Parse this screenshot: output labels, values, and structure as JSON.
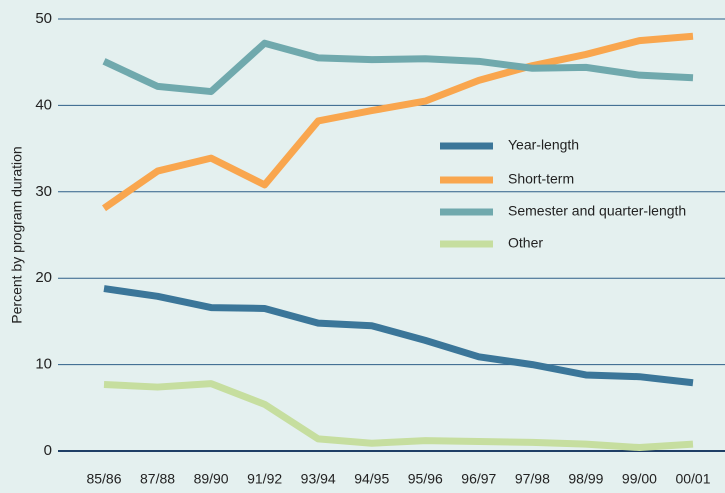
{
  "chart_data": {
    "type": "line",
    "ylabel": "Percent by program duration",
    "categories": [
      "85/86",
      "87/88",
      "89/90",
      "91/92",
      "93/94",
      "94/95",
      "95/96",
      "96/97",
      "97/98",
      "98/99",
      "99/00",
      "00/01"
    ],
    "series": [
      {
        "name": "Year-length",
        "color": "#3b7699",
        "values": [
          18.8,
          17.9,
          16.6,
          16.5,
          14.8,
          14.5,
          12.8,
          10.9,
          10.0,
          8.8,
          8.6,
          7.9
        ]
      },
      {
        "name": "Short-term",
        "color": "#f9a64e",
        "values": [
          28.1,
          32.4,
          33.9,
          30.8,
          38.2,
          39.4,
          40.5,
          42.9,
          44.6,
          45.9,
          47.5,
          48.0
        ]
      },
      {
        "name": "Semester and quarter-length",
        "color": "#70a9ad",
        "values": [
          45.1,
          42.2,
          41.6,
          47.2,
          45.5,
          45.3,
          45.4,
          45.1,
          44.3,
          44.4,
          43.5,
          43.2
        ]
      },
      {
        "name": "Other",
        "color": "#c6de9f",
        "values": [
          7.7,
          7.4,
          7.8,
          5.4,
          1.4,
          0.9,
          1.2,
          1.1,
          1.0,
          0.8,
          0.4,
          0.8
        ]
      }
    ],
    "ylim": [
      0,
      50
    ],
    "yticks": [
      0,
      10,
      20,
      30,
      40,
      50
    ],
    "grid": true
  }
}
